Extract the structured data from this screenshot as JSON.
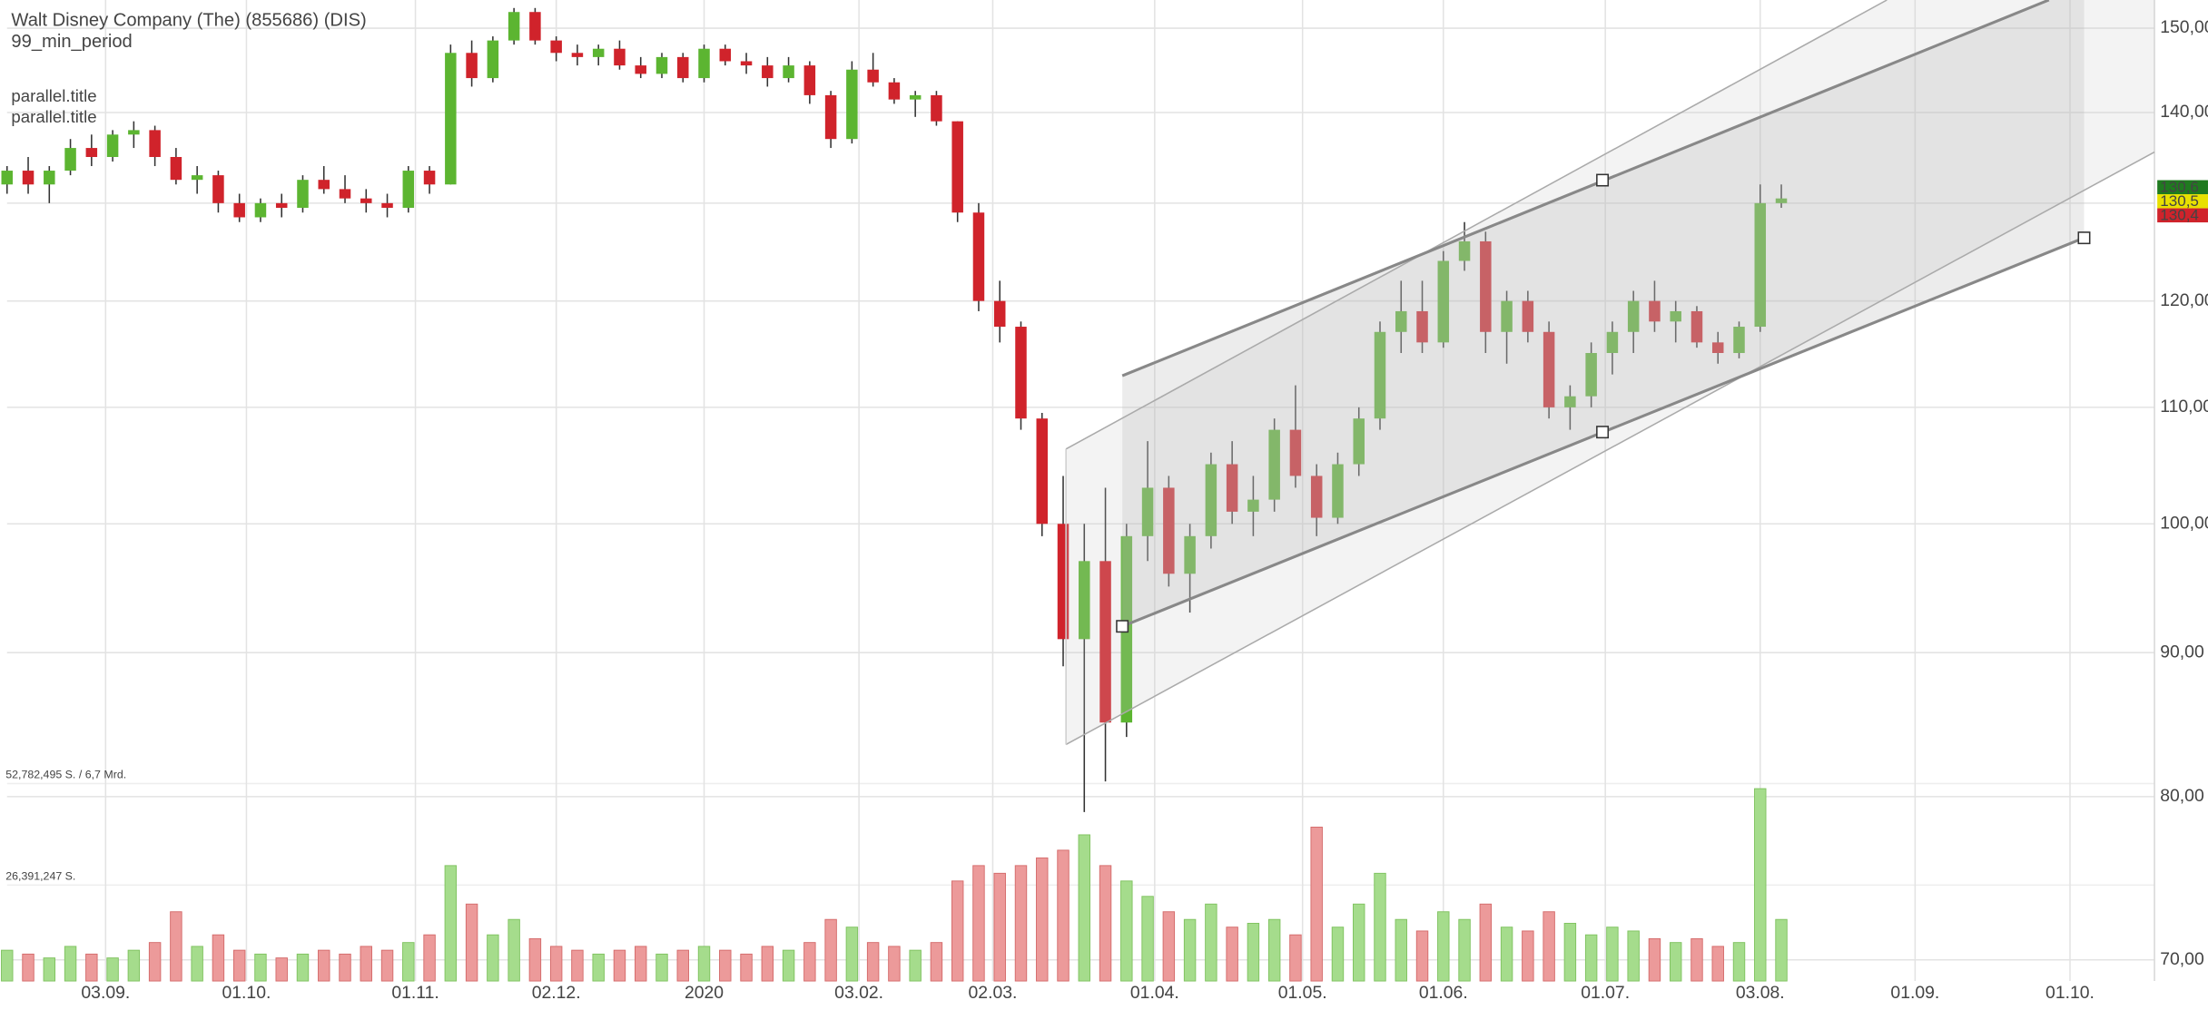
{
  "chart_data": {
    "type": "candlestick",
    "title": "Walt Disney Company (The) (855686) (DIS)",
    "subtitle": "99_min_period",
    "annotations": [
      "parallel.title",
      "parallel.title"
    ],
    "log_scale": true,
    "grid": true,
    "up_color": "#5cb531",
    "down_color": "#d0232b",
    "volume_up_color": "#a5dc8c",
    "volume_down_color": "#ec9a9a",
    "x": [
      0,
      3,
      6,
      9,
      12,
      15,
      18,
      21,
      24,
      27,
      30,
      33,
      36,
      39,
      42,
      45,
      48,
      51,
      54,
      57,
      60,
      63,
      66,
      69,
      72,
      75,
      78,
      81,
      84,
      87,
      90,
      93,
      96,
      99,
      102,
      105,
      108,
      111,
      114,
      117,
      120,
      123,
      126,
      129,
      132,
      135,
      138,
      141,
      144,
      147,
      150,
      153,
      156,
      159,
      162,
      165,
      168,
      171,
      174,
      177,
      180,
      183,
      186,
      189,
      192,
      195,
      198,
      201,
      204,
      207,
      210,
      213,
      216,
      219,
      222,
      225,
      228,
      231,
      234,
      237,
      240,
      243,
      246,
      249,
      252
    ],
    "open": [
      132,
      133.5,
      132,
      133.5,
      136,
      135,
      137.5,
      138,
      135,
      132.5,
      133,
      130,
      128.5,
      130,
      129.5,
      132.5,
      131.5,
      130.5,
      130,
      129.5,
      133.5,
      132,
      147,
      144,
      148.5,
      152,
      148.5,
      147,
      146.5,
      147.5,
      145.5,
      144.5,
      146.5,
      144,
      147.5,
      146,
      145.5,
      144,
      145.5,
      142,
      137,
      145,
      143.5,
      141.5,
      142,
      139,
      129,
      120,
      117.5,
      109,
      100,
      91,
      97,
      85,
      99,
      103,
      96,
      99,
      105,
      101,
      102,
      108,
      104,
      100.5,
      105,
      109,
      117,
      119,
      116,
      124,
      126,
      117,
      120,
      117,
      110,
      111,
      115,
      117,
      120,
      118,
      119,
      116,
      115,
      117.5,
      130
    ],
    "high": [
      134,
      135,
      134,
      137,
      137.5,
      138,
      139,
      138.5,
      136,
      134,
      133.5,
      131,
      130.5,
      131,
      133,
      134,
      133,
      131.5,
      131,
      134,
      134,
      148,
      148.5,
      149,
      152.5,
      152.5,
      149,
      148,
      148,
      148.5,
      146.5,
      147,
      147,
      148,
      148,
      147,
      146.5,
      146.5,
      146,
      142.5,
      146,
      147,
      144,
      142.5,
      142.5,
      139,
      130,
      122,
      118,
      109.5,
      104,
      100,
      103,
      100,
      107,
      104,
      100,
      106,
      107,
      104,
      109,
      112,
      105,
      106,
      110,
      118,
      122,
      122,
      125,
      128,
      127,
      121,
      121,
      118,
      112,
      116,
      118,
      121,
      122,
      120,
      119.5,
      117,
      118,
      132,
      132
    ],
    "low": [
      131,
      131,
      130,
      133,
      134,
      134.5,
      136,
      134,
      132,
      131,
      129,
      128,
      128,
      128.5,
      129,
      131,
      130,
      129,
      128.5,
      129,
      131,
      132,
      143,
      143.5,
      148,
      148,
      146,
      145.5,
      145.5,
      145,
      144,
      144,
      143.5,
      143.5,
      145.5,
      144.5,
      143,
      143.5,
      141,
      136,
      136.5,
      143,
      141,
      139.5,
      138.5,
      128,
      119,
      116,
      108,
      99,
      89,
      79,
      81,
      84,
      97,
      95,
      93,
      98,
      100,
      99,
      101,
      103,
      99,
      100,
      104,
      108,
      115,
      115,
      115.5,
      123,
      115,
      114,
      116,
      109,
      108,
      110,
      113,
      115,
      117,
      116,
      115.5,
      114,
      114.5,
      117,
      129.5
    ],
    "close": [
      133.5,
      132,
      133.5,
      136,
      135,
      137.5,
      138,
      135,
      132.5,
      133,
      130,
      128.5,
      130,
      129.5,
      132.5,
      131.5,
      130.5,
      130,
      129.5,
      133.5,
      132,
      147,
      144,
      148.5,
      152,
      148.5,
      147,
      146.5,
      147.5,
      145.5,
      144.5,
      146.5,
      144,
      147.5,
      146,
      145.5,
      144,
      145.5,
      142,
      137,
      145,
      143.5,
      141.5,
      142,
      139,
      129,
      120,
      117.5,
      109,
      100,
      91,
      97,
      85,
      99,
      103,
      96,
      99,
      105,
      101,
      102,
      108,
      104,
      100.5,
      105,
      109,
      117,
      119,
      116,
      124,
      126,
      117,
      120,
      117,
      110,
      111,
      115,
      117,
      120,
      118,
      119,
      116,
      115,
      117.5,
      130,
      130.5
    ],
    "volume": [
      8000000,
      7000000,
      6000000,
      9000000,
      7000000,
      6000000,
      8000000,
      10000000,
      18000000,
      9000000,
      12000000,
      8000000,
      7000000,
      6000000,
      7000000,
      8000000,
      7000000,
      9000000,
      8000000,
      10000000,
      12000000,
      30000000,
      20000000,
      12000000,
      16000000,
      11000000,
      9000000,
      8000000,
      7000000,
      8000000,
      9000000,
      7000000,
      8000000,
      9000000,
      8000000,
      7000000,
      9000000,
      8000000,
      10000000,
      16000000,
      14000000,
      10000000,
      9000000,
      8000000,
      10000000,
      26000000,
      30000000,
      28000000,
      30000000,
      32000000,
      34000000,
      38000000,
      30000000,
      26000000,
      22000000,
      18000000,
      16000000,
      20000000,
      14000000,
      15000000,
      16000000,
      12000000,
      40000000,
      14000000,
      20000000,
      28000000,
      16000000,
      13000000,
      18000000,
      16000000,
      20000000,
      14000000,
      13000000,
      18000000,
      15000000,
      12000000,
      14000000,
      13000000,
      11000000,
      10000000,
      11000000,
      9000000,
      10000000,
      50000000,
      16000000
    ],
    "xlim": [
      0,
      306
    ],
    "xticks": [
      {
        "value": 14,
        "label": "03.09."
      },
      {
        "value": 34,
        "label": "01.10."
      },
      {
        "value": 58,
        "label": "01.11."
      },
      {
        "value": 78,
        "label": "02.12."
      },
      {
        "value": 99,
        "label": "2020"
      },
      {
        "value": 121,
        "label": "03.02."
      },
      {
        "value": 140,
        "label": "02.03."
      },
      {
        "value": 163,
        "label": "01.04."
      },
      {
        "value": 184,
        "label": "01.05."
      },
      {
        "value": 204,
        "label": "01.06."
      },
      {
        "value": 227,
        "label": "01.07."
      },
      {
        "value": 249,
        "label": "03.08."
      },
      {
        "value": 271,
        "label": "01.09."
      },
      {
        "value": 293,
        "label": "01.10."
      }
    ],
    "ylim": [
      68.8,
      153.5
    ],
    "yticks": [
      {
        "value": 70,
        "label": "70,00"
      },
      {
        "value": 80,
        "label": "80,00"
      },
      {
        "value": 90,
        "label": "90,00"
      },
      {
        "value": 100,
        "label": "100,00"
      },
      {
        "value": 110,
        "label": "110,00"
      },
      {
        "value": 120,
        "label": "120,00"
      },
      {
        "value": 130,
        "label": "130,00"
      },
      {
        "value": 140,
        "label": "140,00"
      },
      {
        "value": 150,
        "label": "150,00"
      }
    ],
    "y2lim": [
      0,
      255000000
    ],
    "y2ticks": [
      {
        "value": 26391247,
        "label": "26,391,247 S."
      },
      {
        "value": 52782495,
        "label": "52,782,495 S. / 6,7 Mrd."
      }
    ],
    "price_tags": [
      {
        "value": 130.6,
        "label": "130,6",
        "color": "#1f7a1f"
      },
      {
        "value": 130.5,
        "label": "130,5",
        "color": "#e8e000"
      },
      {
        "value": 130.4,
        "label": "130,4",
        "color": "#d0232b"
      }
    ]
  }
}
